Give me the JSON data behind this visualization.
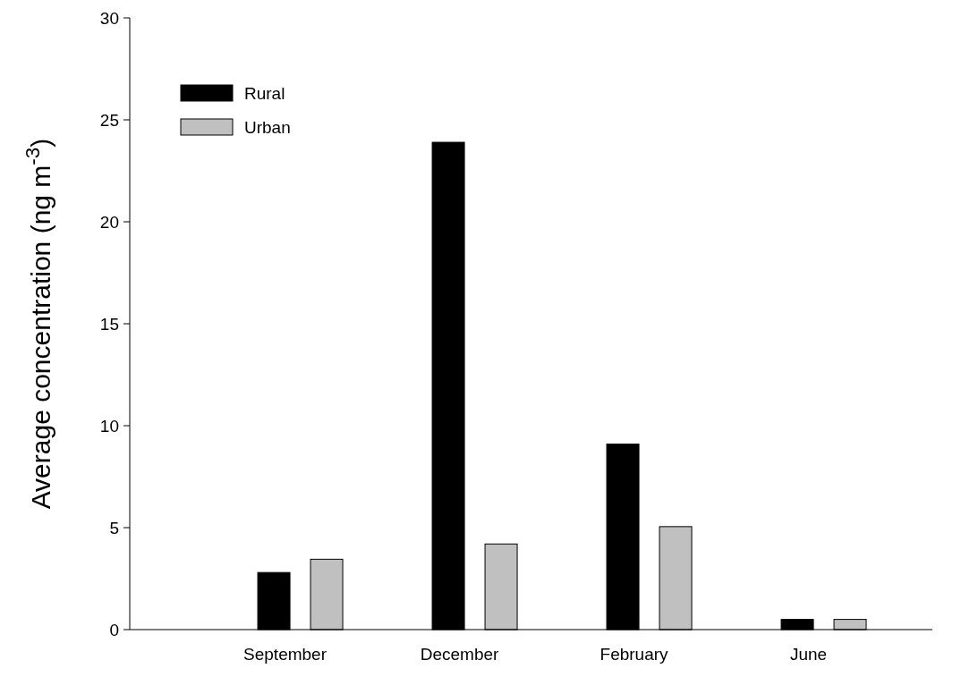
{
  "chart_data": {
    "type": "bar",
    "ylabel": "Average concentration (ng m$^{-3}$)",
    "categories": [
      "September",
      "December",
      "February",
      "June"
    ],
    "series": [
      {
        "name": "Rural",
        "color": "#000000",
        "values": [
          2.8,
          23.9,
          9.1,
          0.5
        ]
      },
      {
        "name": "Urban",
        "color": "#c0c0c0",
        "values": [
          3.45,
          4.2,
          5.05,
          0.5
        ]
      }
    ],
    "ylim": [
      0,
      30
    ],
    "yticks": [
      0,
      5,
      10,
      15,
      20,
      25,
      30
    ],
    "legend": "top left",
    "grid": false
  }
}
